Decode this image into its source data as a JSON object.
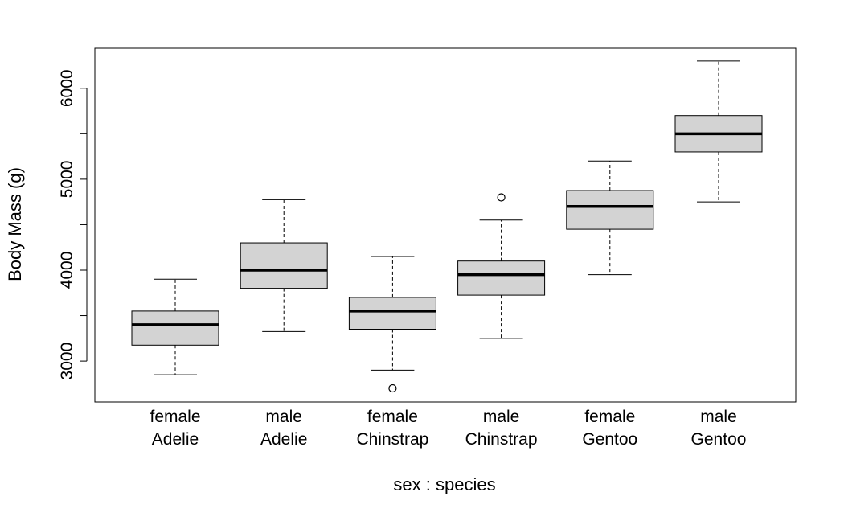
{
  "chart_data": {
    "type": "boxplot",
    "title": "",
    "xlabel": "sex : species",
    "ylabel": "Body Mass (g)",
    "ylim": [
      2550,
      6440
    ],
    "yticks": [
      3000,
      4000,
      5000,
      6000
    ],
    "yticks_minor": [
      3500,
      4500,
      5500
    ],
    "grid": false,
    "box_fill": "#d3d3d3",
    "box_stroke": "#000000",
    "categories": [
      {
        "line1": "female",
        "line2": "Adelie"
      },
      {
        "line1": "male",
        "line2": "Adelie"
      },
      {
        "line1": "female",
        "line2": "Chinstrap"
      },
      {
        "line1": "male",
        "line2": "Chinstrap"
      },
      {
        "line1": "female",
        "line2": "Gentoo"
      },
      {
        "line1": "male",
        "line2": "Gentoo"
      }
    ],
    "boxes": [
      {
        "whisker_low": 2850,
        "q1": 3175,
        "median": 3400,
        "q3": 3550,
        "whisker_high": 3900,
        "outliers": []
      },
      {
        "whisker_low": 3325,
        "q1": 3800,
        "median": 4000,
        "q3": 4300,
        "whisker_high": 4775,
        "outliers": []
      },
      {
        "whisker_low": 2900,
        "q1": 3350,
        "median": 3550,
        "q3": 3700,
        "whisker_high": 4150,
        "outliers": [
          2700
        ]
      },
      {
        "whisker_low": 3250,
        "q1": 3725,
        "median": 3950,
        "q3": 4100,
        "whisker_high": 4550,
        "outliers": [
          4800
        ]
      },
      {
        "whisker_low": 3950,
        "q1": 4450,
        "median": 4700,
        "q3": 4875,
        "whisker_high": 5200,
        "outliers": []
      },
      {
        "whisker_low": 4750,
        "q1": 5300,
        "median": 5500,
        "q3": 5700,
        "whisker_high": 6300,
        "outliers": []
      }
    ]
  }
}
